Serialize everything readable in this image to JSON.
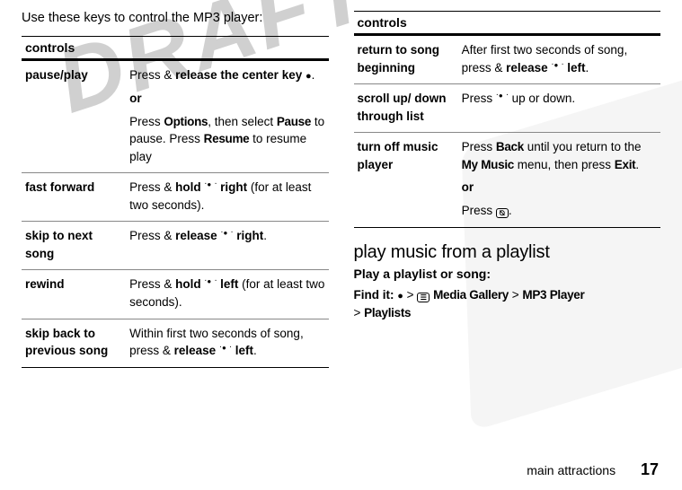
{
  "watermark_text": "DRAFT",
  "intro": "Use these keys to control the MP3 player:",
  "tables_header": "controls",
  "left_table": [
    {
      "action": "pause/play",
      "desc_parts": {
        "a": "Press & ",
        "b": "release the center key",
        "c": ".",
        "or": "or",
        "d": "Press ",
        "opt": "Options",
        "e": ", then select ",
        "pause": "Pause",
        "f": " to pause. Press ",
        "resume": "Resume",
        "g": " to resume play"
      }
    },
    {
      "action": "fast forward",
      "desc_parts": {
        "a": "Press & ",
        "b": "hold",
        "c": " ",
        "d": "right",
        "e": " (for at least two seconds)."
      }
    },
    {
      "action": "skip to next song",
      "desc_parts": {
        "a": "Press & ",
        "b": "release",
        "c": " ",
        "d": "right",
        "e": "."
      }
    },
    {
      "action": "rewind",
      "desc_parts": {
        "a": "Press & ",
        "b": "hold",
        "c": " ",
        "d": "left",
        "e": " (for at least two seconds)."
      }
    },
    {
      "action": "skip back to previous song",
      "desc_parts": {
        "a": "Within first two seconds of song, press & ",
        "b": "release",
        "c": " ",
        "d": "left",
        "e": "."
      }
    }
  ],
  "right_table": [
    {
      "action": "return to song beginning",
      "desc_parts": {
        "a": "After first two seconds of song, press & ",
        "b": "release",
        "c": " ",
        "d": "left",
        "e": "."
      }
    },
    {
      "action": "scroll up/ down through list",
      "desc_parts": {
        "a": "Press ",
        "b": " up or down."
      }
    },
    {
      "action": "turn off music player",
      "desc_parts": {
        "a": "Press ",
        "back": "Back",
        "b": " until you return to the ",
        "mymusic": "My Music",
        "c": " menu, then press ",
        "exit": "Exit",
        "d": ".",
        "or": "or",
        "e": "Press ",
        "f": "."
      }
    }
  ],
  "section_title": "play music from a playlist",
  "sub_bold": "Play a playlist or song:",
  "findit": {
    "label": "Find it:",
    "a": " ",
    "gt1": ">",
    "gallery": "Media Gallery",
    "gt2": ">",
    "mp3": "MP3 Player",
    "gt3": ">",
    "playlists": "Playlists"
  },
  "footer_text": "main attractions",
  "page_number": "17"
}
